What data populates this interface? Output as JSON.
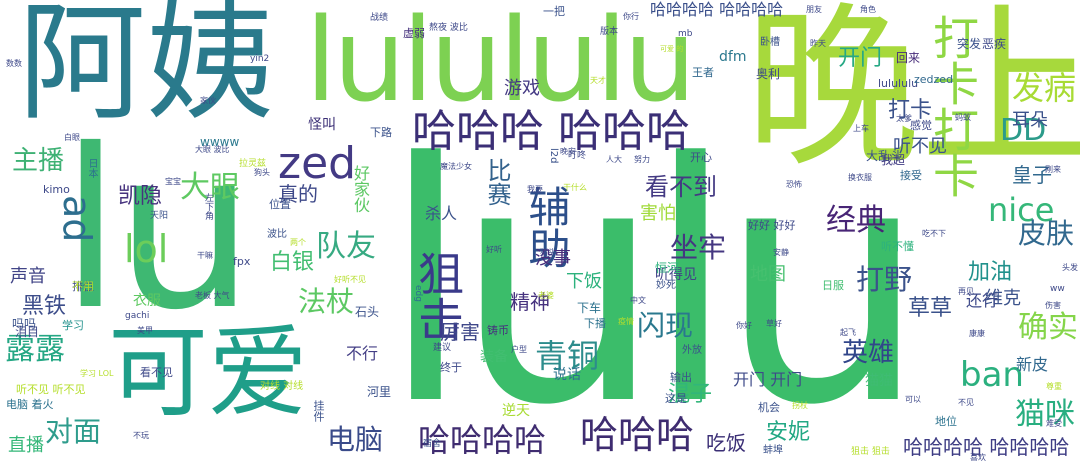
{
  "words": [
    {
      "text": "lulu",
      "color": "#3bbd6a"
    },
    {
      "text": "晚上",
      "color": "#a7d93c"
    },
    {
      "text": "阿姨",
      "color": "#2a7a8c"
    },
    {
      "text": "lulululu",
      "color": "#7dd152"
    },
    {
      "text": "lu",
      "color": "#3eb872"
    },
    {
      "text": "可爱",
      "color": "#1f9e89"
    },
    {
      "text": "打卡打卡",
      "color": "#8fd744"
    },
    {
      "text": "哈哈哈 哈哈哈",
      "color": "#3b2f76"
    },
    {
      "text": "辅助",
      "color": "#2c4f8a"
    },
    {
      "text": "狙击",
      "color": "#3a3a8a"
    },
    {
      "text": "zed",
      "color": "#433a84"
    },
    {
      "text": "哈哈哈哈",
      "color": "#3f2c70"
    },
    {
      "text": "哈哈哈",
      "color": "#3e2c70"
    },
    {
      "text": "ban",
      "color": "#2bb07f"
    },
    {
      "text": "lol",
      "color": "#6ccd5a"
    },
    {
      "text": "ad",
      "color": "#2d6e8e"
    },
    {
      "text": "发病",
      "color": "#a8db34"
    },
    {
      "text": "DD",
      "color": "#2c9b8a"
    },
    {
      "text": "nice",
      "color": "#35b779"
    },
    {
      "text": "队友",
      "color": "#37aa82"
    },
    {
      "text": "经典",
      "color": "#482576"
    },
    {
      "text": "皮肤",
      "color": "#31688e"
    },
    {
      "text": "青铜",
      "color": "#2c8c8c"
    },
    {
      "text": "大眼",
      "color": "#5ec962"
    },
    {
      "text": "确实",
      "color": "#85d54a"
    },
    {
      "text": "猫咪",
      "color": "#28ae80"
    },
    {
      "text": "露露",
      "color": "#25a784"
    },
    {
      "text": "主播",
      "color": "#3eb174"
    },
    {
      "text": "电脑",
      "color": "#3a4b8a"
    },
    {
      "text": "对面",
      "color": "#2e9c8c"
    },
    {
      "text": "坐牢",
      "color": "#453781"
    },
    {
      "text": "法杖",
      "color": "#5cc863"
    },
    {
      "text": "打野",
      "color": "#3b528b"
    },
    {
      "text": "英雄",
      "color": "#31468a"
    },
    {
      "text": "闪现",
      "color": "#2a788e"
    },
    {
      "text": "开门",
      "color": "#26a884"
    },
    {
      "text": "打卡",
      "color": "#3b528b"
    },
    {
      "text": "看不到",
      "color": "#443a83"
    },
    {
      "text": "加油",
      "color": "#21918c"
    },
    {
      "text": "凯隐",
      "color": "#46327e"
    },
    {
      "text": "黑铁",
      "color": "#3d4d8a"
    },
    {
      "text": "比赛",
      "color": "#33628d"
    },
    {
      "text": "白银",
      "color": "#42be71"
    },
    {
      "text": "草草",
      "color": "#3b528b"
    },
    {
      "text": "真的",
      "color": "#3e4989"
    },
    {
      "text": "安妮",
      "color": "#22a884"
    },
    {
      "text": "混子",
      "color": "#32b67a"
    },
    {
      "text": "皇子",
      "color": "#31688e"
    },
    {
      "text": "耳朵",
      "color": "#3b528b"
    },
    {
      "text": "听不见",
      "color": "#3b528b"
    },
    {
      "text": "精神",
      "color": "#46327e"
    },
    {
      "text": "吃饭",
      "color": "#3b2f76"
    },
    {
      "text": "哈哈哈哈 哈哈哈哈",
      "color": "#3a4f8a"
    },
    {
      "text": "哈哈哈哈 哈哈哈哈",
      "color": "#3e3d84"
    },
    {
      "text": "地图",
      "color": "#46c06f"
    },
    {
      "text": "厉害",
      "color": "#3f4889"
    },
    {
      "text": "声音",
      "color": "#414487"
    },
    {
      "text": "游戏",
      "color": "#443983"
    },
    {
      "text": "好家伙",
      "color": "#5cc863"
    },
    {
      "text": "害怕",
      "color": "#a0da39"
    },
    {
      "text": "杀人",
      "color": "#3b528b"
    },
    {
      "text": "没事",
      "color": "#472d7b"
    },
    {
      "text": "下饭",
      "color": "#2db27d"
    },
    {
      "text": "维克",
      "color": "#3b528b"
    },
    {
      "text": "还行",
      "color": "#3e4989"
    },
    {
      "text": "新皮",
      "color": "#31688e"
    },
    {
      "text": "不行",
      "color": "#433e85"
    },
    {
      "text": "开门 开门",
      "color": "#3e4a89"
    },
    {
      "text": "直播",
      "color": "#35b779"
    },
    {
      "text": "衣服",
      "color": "#5ec962"
    },
    {
      "text": "听得见",
      "color": "#414487"
    },
    {
      "text": "说话",
      "color": "#2c728e"
    },
    {
      "text": "装备",
      "color": "#42be71"
    },
    {
      "text": "猫猫",
      "color": "#3fbc73"
    },
    {
      "text": "dfm",
      "color": "#2a788e"
    },
    {
      "text": "奥利",
      "color": "#3e4989"
    },
    {
      "text": "突发",
      "color": "#3b528b"
    },
    {
      "text": "恶疾",
      "color": "#3e4989"
    },
    {
      "text": "回来",
      "color": "#472c7a"
    },
    {
      "text": "大乱斗",
      "color": "#3b528b"
    },
    {
      "text": "我超",
      "color": "#433e85"
    },
    {
      "text": "接受",
      "color": "#31688e"
    },
    {
      "text": "感觉",
      "color": "#3e4989"
    },
    {
      "text": "石头",
      "color": "#3b528b"
    },
    {
      "text": "铸币",
      "color": "#46327e"
    },
    {
      "text": "逆天",
      "color": "#a8db34"
    },
    {
      "text": "机会",
      "color": "#3b528b"
    },
    {
      "text": "地位",
      "color": "#2c728e"
    },
    {
      "text": "下车",
      "color": "#2c728e"
    },
    {
      "text": "下播",
      "color": "#2c728e"
    },
    {
      "text": "排位",
      "color": "#3e4989"
    },
    {
      "text": "吗吗",
      "color": "#3b528b"
    },
    {
      "text": "泪目",
      "color": "#3e4989"
    },
    {
      "text": "学习",
      "color": "#21918c"
    },
    {
      "text": "不用",
      "color": "#b5de2b"
    },
    {
      "text": "wwww",
      "color": "#2a788e"
    },
    {
      "text": "kimo",
      "color": "#3e4989"
    },
    {
      "text": "怪叫",
      "color": "#3b2f76"
    },
    {
      "text": "下路",
      "color": "#3b528b"
    },
    {
      "text": "虚弱",
      "color": "#46327e"
    },
    {
      "text": "一把",
      "color": "#3b528b"
    },
    {
      "text": "lulululu",
      "color": "#3e4989"
    },
    {
      "text": "zedzed",
      "color": "#31688e"
    },
    {
      "text": "王者",
      "color": "#31688e"
    },
    {
      "text": "卧槽",
      "color": "#3b528b"
    },
    {
      "text": "战绩",
      "color": "#3e4989"
    },
    {
      "text": "熬夜 波比",
      "color": "#3e4989"
    },
    {
      "text": "版本",
      "color": "#3e4989"
    },
    {
      "text": "开心",
      "color": "#3e4989"
    },
    {
      "text": "日服",
      "color": "#42be71"
    },
    {
      "text": "恒河",
      "color": "#2db27d"
    },
    {
      "text": "妙死",
      "color": "#3b528b"
    },
    {
      "text": "输出",
      "color": "#3b528b"
    },
    {
      "text": "这是",
      "color": "#3b528b"
    },
    {
      "text": "外放",
      "color": "#3b528b"
    },
    {
      "text": "终于",
      "color": "#3e4989"
    },
    {
      "text": "建议",
      "color": "#3e4989"
    },
    {
      "text": "看不见",
      "color": "#3e4989"
    },
    {
      "text": "电脑 着火",
      "color": "#2c728e"
    },
    {
      "text": "听不见 听不见",
      "color": "#b5de2b"
    },
    {
      "text": "对线 对线",
      "color": "#b5de2b"
    },
    {
      "text": "河里",
      "color": "#3b528b"
    },
    {
      "text": "挂件",
      "color": "#3b528b"
    },
    {
      "text": "宿舍",
      "color": "#3b528b"
    },
    {
      "text": "波比",
      "color": "#3b528b"
    },
    {
      "text": "位置",
      "color": "#3b528b"
    },
    {
      "text": "fpx",
      "color": "#3e4989"
    },
    {
      "text": "听不懂",
      "color": "#2db27d"
    },
    {
      "text": "好好 好好",
      "color": "#3e4989"
    },
    {
      "text": "蚌埠",
      "color": "#3b528b"
    },
    {
      "text": "狙击 狙击",
      "color": "#b5de2b"
    },
    {
      "text": "ww",
      "color": "#3e4989"
    },
    {
      "text": "edg",
      "color": "#2c728e"
    },
    {
      "text": "l2d",
      "color": "#3b528b"
    },
    {
      "text": "mb",
      "color": "#3e4989"
    },
    {
      "text": "yin2",
      "color": "#3e4989"
    },
    {
      "text": "叮咚",
      "color": "#3e4989"
    },
    {
      "text": "人大",
      "color": "#3e4989"
    },
    {
      "text": "日本",
      "color": "#2c728e"
    },
    {
      "text": "天阳",
      "color": "#3b528b"
    },
    {
      "text": "gachi",
      "color": "#3e4989"
    },
    {
      "text": "老板 大气",
      "color": "#3e4989"
    },
    {
      "text": "美甲",
      "color": "#3e4989"
    },
    {
      "text": "学习 LOL",
      "color": "#b5de2b"
    },
    {
      "text": "老婆",
      "color": "#b5de2b"
    },
    {
      "text": "猪头",
      "color": "#3e4989"
    },
    {
      "text": "好听",
      "color": "#3e4989"
    },
    {
      "text": "疫情",
      "color": "#b5de2b"
    },
    {
      "text": "晚安",
      "color": "#3e4989"
    },
    {
      "text": "中文",
      "color": "#3e4989"
    },
    {
      "text": "我要",
      "color": "#3e4989"
    },
    {
      "text": "干什么",
      "color": "#b5de2b"
    },
    {
      "text": "换衣服",
      "color": "#3e4989"
    },
    {
      "text": "刚来",
      "color": "#3e4989"
    },
    {
      "text": "不玩",
      "color": "#3e4989"
    },
    {
      "text": "上车",
      "color": "#3e4989"
    },
    {
      "text": "太爹",
      "color": "#3e4989"
    },
    {
      "text": "角色",
      "color": "#3e4989"
    },
    {
      "text": "昨天",
      "color": "#3e4989"
    },
    {
      "text": "你行",
      "color": "#3e4989"
    },
    {
      "text": "努力",
      "color": "#3e4989"
    },
    {
      "text": "可爱 的",
      "color": "#b5de2b"
    },
    {
      "text": "白眼",
      "color": "#3e4989"
    },
    {
      "text": "家伙",
      "color": "#3e4989"
    },
    {
      "text": "数数",
      "color": "#3e4989"
    },
    {
      "text": "宝宝",
      "color": "#3e4989"
    },
    {
      "text": "左下角",
      "color": "#3e4989"
    },
    {
      "text": "狗头",
      "color": "#3e4989"
    },
    {
      "text": "拉灵兹",
      "color": "#b5de2b"
    },
    {
      "text": "干嘛",
      "color": "#3e4989"
    },
    {
      "text": "两个",
      "color": "#b5de2b"
    },
    {
      "text": "恐怖",
      "color": "#3e4989"
    },
    {
      "text": "安静",
      "color": "#3e4989"
    },
    {
      "text": "再见",
      "color": "#3e4989"
    },
    {
      "text": "康康",
      "color": "#3e4989"
    },
    {
      "text": "你好",
      "color": "#3e4989"
    },
    {
      "text": "草好",
      "color": "#3e4989"
    },
    {
      "text": "户型",
      "color": "#3e4989"
    },
    {
      "text": "蚂蚁",
      "color": "#3e4989"
    },
    {
      "text": "朋友",
      "color": "#3e4989"
    },
    {
      "text": "大眼 波比",
      "color": "#3e4989"
    },
    {
      "text": "天才",
      "color": "#b5de2b"
    },
    {
      "text": "伤害",
      "color": "#3e4989"
    },
    {
      "text": "吃不下",
      "color": "#3e4989"
    },
    {
      "text": "尊重",
      "color": "#b5de2b"
    },
    {
      "text": "拐杖",
      "color": "#b5de2b"
    },
    {
      "text": "起飞",
      "color": "#3e4989"
    },
    {
      "text": "魔法少女",
      "color": "#3e4989"
    },
    {
      "text": "好听不见",
      "color": "#b5de2b"
    },
    {
      "text": "喜欢",
      "color": "#3e4989"
    },
    {
      "text": "不见",
      "color": "#3e4989"
    },
    {
      "text": "可以",
      "color": "#3e4989"
    },
    {
      "text": "难受",
      "color": "#3e4989"
    },
    {
      "text": "头发",
      "color": "#3e4989"
    }
  ]
}
